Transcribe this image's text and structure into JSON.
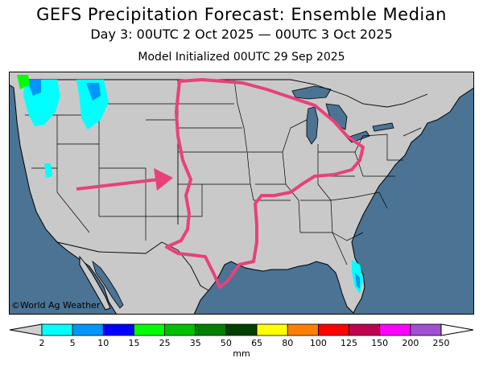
{
  "header": {
    "title": "GEFS Precipitation Forecast: Ensemble Median",
    "subtitle": "Day 3: 00UTC 2 Oct 2025 — 00UTC 3 Oct 2025",
    "init": "Model Initialized 00UTC 29 Sep 2025"
  },
  "map": {
    "credit": "©World Ag Weather",
    "colors": {
      "ocean": "#4b7394",
      "land": "#c9c9c9",
      "border": "#000000",
      "annotation": "#e8417a"
    }
  },
  "legend": {
    "units": "mm",
    "ticks": [
      "2",
      "5",
      "10",
      "15",
      "25",
      "35",
      "50",
      "65",
      "80",
      "100",
      "125",
      "150",
      "200",
      "250"
    ],
    "colors": [
      "#00ffff",
      "#0096ff",
      "#0000ff",
      "#00ff00",
      "#00c000",
      "#008000",
      "#004000",
      "#ffff00",
      "#ff8000",
      "#ff0000",
      "#c00050",
      "#ff00ff",
      "#a050d0"
    ],
    "under_color": "#d0d0d0",
    "over_color": "#ffffff"
  }
}
